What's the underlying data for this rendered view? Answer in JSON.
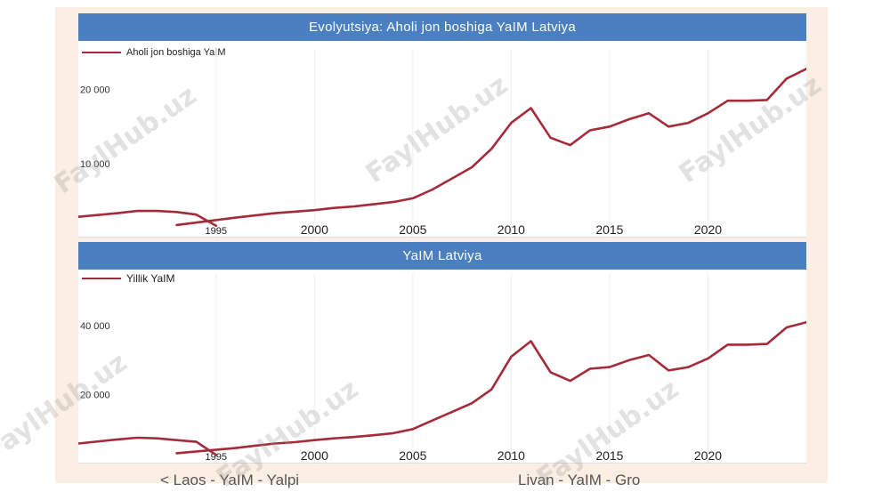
{
  "watermark": "FaylHub.uz",
  "footer": {
    "prev_link": "< Laos - YaIM - Yalpi",
    "next_link": "Livan - YaIM - Gro"
  },
  "colors": {
    "line": "#a52a3a",
    "header": "#4a7fc1"
  },
  "chart_data": [
    {
      "type": "line",
      "title": "Evolyutsiya: Aholi jon boshiga YaIM Latviya",
      "series": [
        {
          "name": "Aholi jon boshiga YaIM"
        }
      ],
      "y_ticks": [
        {
          "value": 10000,
          "label": "10 000"
        },
        {
          "value": 20000,
          "label": "20 000"
        }
      ],
      "x_ticks": [
        "1995",
        "2000",
        "2005",
        "2010",
        "2015",
        "2020"
      ],
      "ylim": [
        0,
        25500
      ],
      "xlim": [
        1988,
        2025
      ],
      "segments": [
        [
          [
            1988,
            2800
          ],
          [
            1990,
            3300
          ],
          [
            1991,
            3600
          ],
          [
            1992,
            3600
          ],
          [
            1993,
            3450
          ],
          [
            1994,
            3100
          ],
          [
            1995,
            1600
          ]
        ],
        [
          [
            1993,
            1700
          ],
          [
            1996,
            2700
          ],
          [
            1997,
            3000
          ],
          [
            1998,
            3300
          ],
          [
            1999,
            3500
          ],
          [
            2000,
            3700
          ],
          [
            2001,
            4000
          ],
          [
            2002,
            4200
          ],
          [
            2003,
            4500
          ],
          [
            2004,
            4800
          ],
          [
            2005,
            5300
          ],
          [
            2006,
            6500
          ],
          [
            2007,
            8000
          ],
          [
            2008,
            9500
          ],
          [
            2009,
            12000
          ],
          [
            2010,
            15500
          ],
          [
            2011,
            17500
          ],
          [
            2012,
            13500
          ],
          [
            2013,
            12500
          ],
          [
            2014,
            14500
          ],
          [
            2015,
            15000
          ],
          [
            2016,
            16000
          ],
          [
            2017,
            16800
          ],
          [
            2018,
            15000
          ],
          [
            2019,
            15500
          ],
          [
            2020,
            16800
          ],
          [
            2021,
            18500
          ],
          [
            2022,
            18500
          ],
          [
            2023,
            18600
          ],
          [
            2024,
            21500
          ],
          [
            2025,
            22800
          ],
          [
            2026,
            24000
          ]
        ]
      ]
    },
    {
      "type": "line",
      "title": "YaIM Latviya",
      "series": [
        {
          "name": "Yillik YaIM"
        }
      ],
      "y_ticks": [
        {
          "value": 20000,
          "label": "20 000"
        },
        {
          "value": 40000,
          "label": "40 000"
        }
      ],
      "x_ticks": [
        "1995",
        "2000",
        "2005",
        "2010",
        "2015",
        "2020"
      ],
      "ylim": [
        0,
        55000
      ],
      "xlim": [
        1988,
        2025
      ],
      "segments": [
        [
          [
            1988,
            5800
          ],
          [
            1990,
            7000
          ],
          [
            1991,
            7500
          ],
          [
            1992,
            7300
          ],
          [
            1993,
            6800
          ],
          [
            1994,
            6300
          ],
          [
            1995,
            2500
          ]
        ],
        [
          [
            1993,
            3000
          ],
          [
            1996,
            4500
          ],
          [
            1997,
            5200
          ],
          [
            1998,
            5800
          ],
          [
            1999,
            6200
          ],
          [
            2000,
            6800
          ],
          [
            2001,
            7300
          ],
          [
            2002,
            7700
          ],
          [
            2003,
            8200
          ],
          [
            2004,
            8800
          ],
          [
            2005,
            10000
          ],
          [
            2006,
            12500
          ],
          [
            2007,
            15000
          ],
          [
            2008,
            17500
          ],
          [
            2009,
            21500
          ],
          [
            2010,
            31000
          ],
          [
            2011,
            35500
          ],
          [
            2012,
            26500
          ],
          [
            2013,
            24000
          ],
          [
            2014,
            27500
          ],
          [
            2015,
            28000
          ],
          [
            2016,
            30000
          ],
          [
            2017,
            31500
          ],
          [
            2018,
            27000
          ],
          [
            2019,
            28000
          ],
          [
            2020,
            30500
          ],
          [
            2021,
            34500
          ],
          [
            2022,
            34500
          ],
          [
            2023,
            34700
          ],
          [
            2024,
            39500
          ],
          [
            2025,
            41000
          ],
          [
            2026,
            44500
          ]
        ]
      ]
    }
  ]
}
